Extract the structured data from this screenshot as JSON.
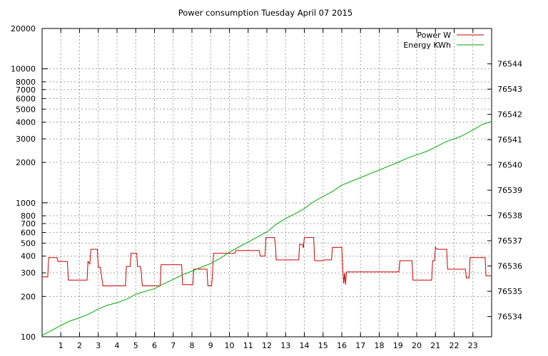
{
  "chart_data": {
    "type": "line",
    "title": "Power consumption Tuesday April 07 2015",
    "xlabel": "",
    "ylabel": "",
    "xlim": [
      0,
      24
    ],
    "x_ticks": [
      "1",
      "2",
      "3",
      "4",
      "5",
      "6",
      "7",
      "8",
      "9",
      "10",
      "11",
      "12",
      "13",
      "14",
      "15",
      "16",
      "17",
      "18",
      "19",
      "20",
      "21",
      "22",
      "23"
    ],
    "grid": true,
    "legend_position": "top-right",
    "y_axis": {
      "scale": "log",
      "range": [
        100,
        20000
      ],
      "tick_labels": [
        "100",
        "200",
        "300",
        "400",
        "500",
        "600",
        "700",
        "800",
        "1000",
        "2000",
        "3000",
        "4000",
        "5000",
        "6000",
        "7000",
        "8000",
        "10000",
        "20000"
      ]
    },
    "y2_axis": {
      "scale": "linear",
      "range": [
        76533.2,
        76545.4
      ],
      "tick_labels": [
        "76534",
        "76535",
        "76536",
        "76537",
        "76538",
        "76539",
        "76540",
        "76541",
        "76542",
        "76543",
        "76544"
      ]
    },
    "series": [
      {
        "name": "Power W",
        "axis": "y",
        "color": "#cc0000",
        "points": [
          [
            0,
            280
          ],
          [
            0.3,
            280
          ],
          [
            0.35,
            390
          ],
          [
            0.8,
            390
          ],
          [
            0.85,
            365
          ],
          [
            1.35,
            365
          ],
          [
            1.4,
            265
          ],
          [
            2.4,
            265
          ],
          [
            2.45,
            365
          ],
          [
            2.55,
            350
          ],
          [
            2.6,
            450
          ],
          [
            2.95,
            450
          ],
          [
            3.0,
            330
          ],
          [
            3.1,
            330
          ],
          [
            3.15,
            300
          ],
          [
            3.25,
            240
          ],
          [
            4.45,
            240
          ],
          [
            4.5,
            335
          ],
          [
            4.7,
            335
          ],
          [
            4.75,
            420
          ],
          [
            5.05,
            420
          ],
          [
            5.1,
            335
          ],
          [
            5.25,
            335
          ],
          [
            5.3,
            300
          ],
          [
            5.35,
            240
          ],
          [
            6.3,
            240
          ],
          [
            6.35,
            345
          ],
          [
            7.45,
            345
          ],
          [
            7.5,
            245
          ],
          [
            8.05,
            245
          ],
          [
            8.1,
            320
          ],
          [
            8.8,
            320
          ],
          [
            8.85,
            240
          ],
          [
            9.05,
            240
          ],
          [
            9.1,
            300
          ],
          [
            9.15,
            420
          ],
          [
            10.3,
            420
          ],
          [
            10.35,
            440
          ],
          [
            11.6,
            440
          ],
          [
            11.65,
            400
          ],
          [
            11.9,
            400
          ],
          [
            11.95,
            550
          ],
          [
            12.4,
            550
          ],
          [
            12.45,
            500
          ],
          [
            12.5,
            375
          ],
          [
            13.7,
            375
          ],
          [
            13.75,
            490
          ],
          [
            13.9,
            490
          ],
          [
            13.95,
            460
          ],
          [
            14.0,
            550
          ],
          [
            14.5,
            550
          ],
          [
            14.55,
            370
          ],
          [
            15.0,
            370
          ],
          [
            15.05,
            375
          ],
          [
            15.45,
            375
          ],
          [
            15.5,
            465
          ],
          [
            16.0,
            465
          ],
          [
            16.05,
            330
          ],
          [
            16.1,
            250
          ],
          [
            16.15,
            300
          ],
          [
            16.2,
            245
          ],
          [
            16.25,
            305
          ],
          [
            19.05,
            305
          ],
          [
            19.1,
            370
          ],
          [
            19.75,
            370
          ],
          [
            19.8,
            265
          ],
          [
            20.8,
            265
          ],
          [
            20.85,
            370
          ],
          [
            20.95,
            370
          ],
          [
            21.0,
            465
          ],
          [
            21.1,
            450
          ],
          [
            21.6,
            450
          ],
          [
            21.65,
            320
          ],
          [
            22.6,
            320
          ],
          [
            22.65,
            275
          ],
          [
            22.8,
            275
          ],
          [
            22.85,
            390
          ],
          [
            23.65,
            390
          ],
          [
            23.7,
            285
          ],
          [
            24,
            285
          ]
        ]
      },
      {
        "name": "Energy KWh",
        "axis": "y2",
        "color": "#00aa00",
        "points": [
          [
            0,
            76533.25
          ],
          [
            0.5,
            76533.45
          ],
          [
            1,
            76533.65
          ],
          [
            1.5,
            76533.83
          ],
          [
            2,
            76533.95
          ],
          [
            2.5,
            76534.1
          ],
          [
            3,
            76534.3
          ],
          [
            3.5,
            76534.45
          ],
          [
            4,
            76534.55
          ],
          [
            4.5,
            76534.68
          ],
          [
            5,
            76534.88
          ],
          [
            5.5,
            76535.0
          ],
          [
            6,
            76535.1
          ],
          [
            6.5,
            76535.3
          ],
          [
            7,
            76535.47
          ],
          [
            7.5,
            76535.65
          ],
          [
            8,
            76535.8
          ],
          [
            8.5,
            76535.95
          ],
          [
            9,
            76536.1
          ],
          [
            9.5,
            76536.3
          ],
          [
            10,
            76536.55
          ],
          [
            10.5,
            76536.75
          ],
          [
            11,
            76536.95
          ],
          [
            11.5,
            76537.15
          ],
          [
            12,
            76537.35
          ],
          [
            12.5,
            76537.65
          ],
          [
            13,
            76537.88
          ],
          [
            13.5,
            76538.07
          ],
          [
            14,
            76538.27
          ],
          [
            14.5,
            76538.55
          ],
          [
            15,
            76538.75
          ],
          [
            15.5,
            76538.95
          ],
          [
            16,
            76539.2
          ],
          [
            16.5,
            76539.35
          ],
          [
            17,
            76539.5
          ],
          [
            17.5,
            76539.65
          ],
          [
            18,
            76539.8
          ],
          [
            18.5,
            76539.95
          ],
          [
            19,
            76540.1
          ],
          [
            19.5,
            76540.27
          ],
          [
            20,
            76540.4
          ],
          [
            20.5,
            76540.53
          ],
          [
            21,
            76540.7
          ],
          [
            21.5,
            76540.9
          ],
          [
            22,
            76541.03
          ],
          [
            22.5,
            76541.18
          ],
          [
            23,
            76541.38
          ],
          [
            23.5,
            76541.6
          ],
          [
            24,
            76541.72
          ]
        ]
      }
    ]
  }
}
